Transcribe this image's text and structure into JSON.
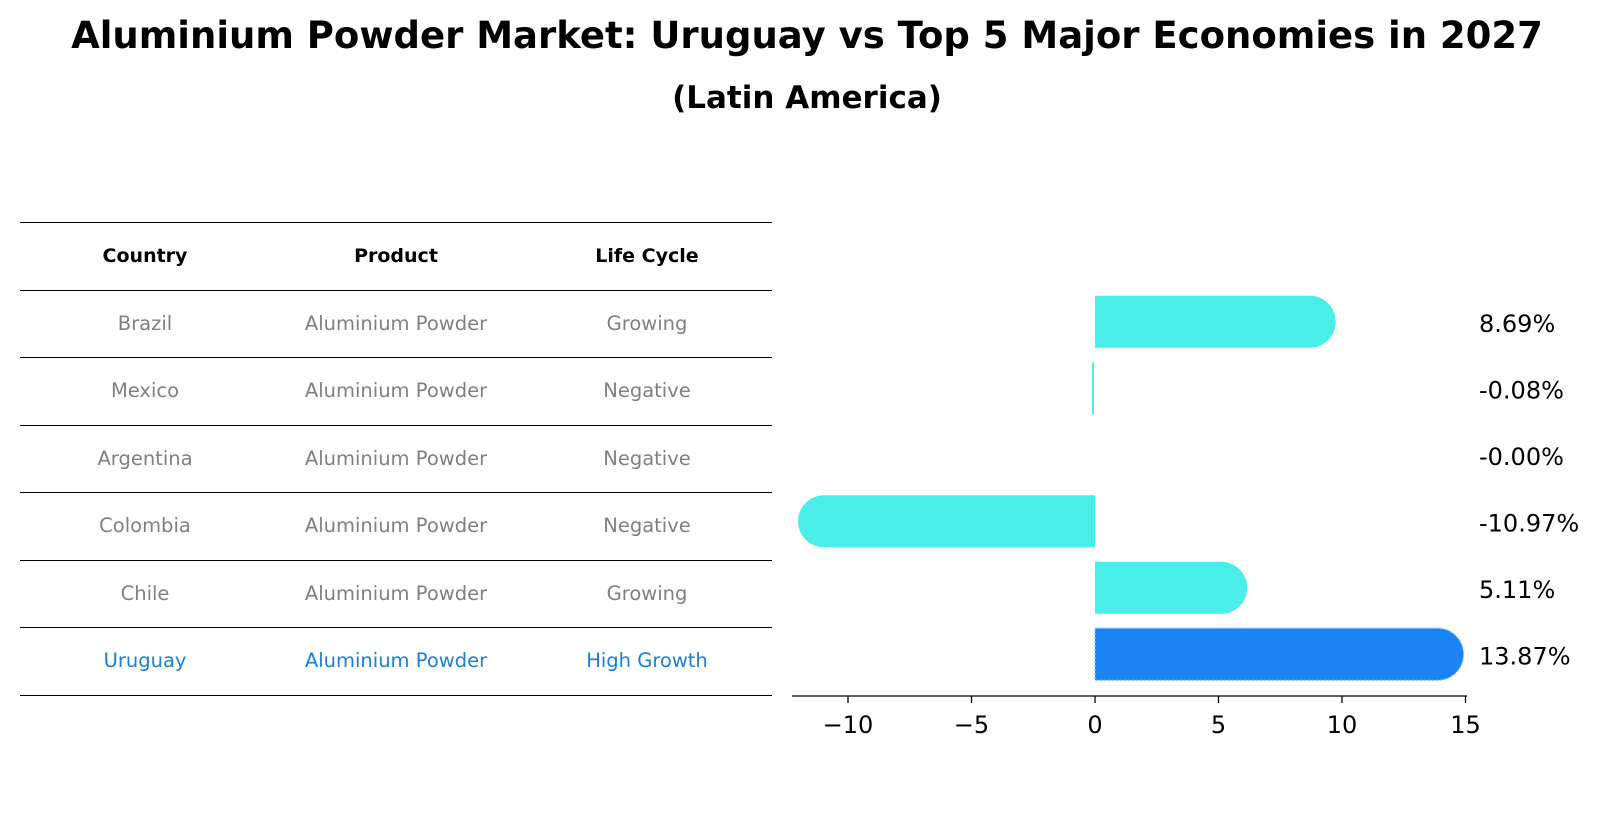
{
  "title": "Aluminium Powder Market: Uruguay vs Top 5 Major Economies in 2027",
  "subtitle": "(Latin America)",
  "colors": {
    "bar": "#4aeee8",
    "highlight": "#1a84f5",
    "muted_text": "#808080",
    "highlight_text": "#1a7fd6"
  },
  "table": {
    "headers": [
      "Country",
      "Product",
      "Life Cycle"
    ],
    "rows": [
      {
        "country": "Brazil",
        "product": "Aluminium Powder",
        "life_cycle": "Growing"
      },
      {
        "country": "Mexico",
        "product": "Aluminium Powder",
        "life_cycle": "Negative"
      },
      {
        "country": "Argentina",
        "product": "Aluminium Powder",
        "life_cycle": "Negative"
      },
      {
        "country": "Colombia",
        "product": "Aluminium Powder",
        "life_cycle": "Negative"
      },
      {
        "country": "Chile",
        "product": "Aluminium Powder",
        "life_cycle": "Growing"
      },
      {
        "country": "Uruguay",
        "product": "Aluminium Powder",
        "life_cycle": "High Growth"
      }
    ]
  },
  "chart_data": {
    "type": "bar",
    "orientation": "horizontal",
    "categories": [
      "Brazil",
      "Mexico",
      "Argentina",
      "Colombia",
      "Chile",
      "Uruguay"
    ],
    "values": [
      8.69,
      -0.08,
      -0.0,
      -10.97,
      5.11,
      13.87
    ],
    "value_labels": [
      "8.69%",
      "-0.08%",
      "-0.00%",
      "-10.97%",
      "5.11%",
      "13.87%"
    ],
    "highlight": "Uruguay",
    "xlim": [
      -12.5,
      15
    ],
    "xticks": [
      -10,
      -5,
      0,
      5,
      10,
      15
    ],
    "xtick_labels": [
      "−10",
      "−5",
      "0",
      "5",
      "10",
      "15"
    ],
    "xlabel": "",
    "ylabel": ""
  }
}
